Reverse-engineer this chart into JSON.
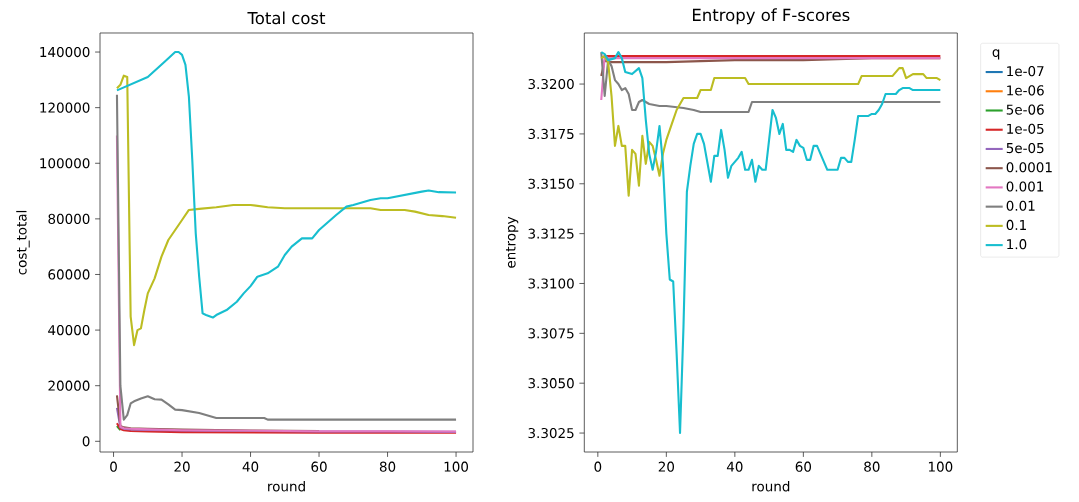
{
  "chart_data": [
    {
      "type": "line",
      "title": "Total cost",
      "xlabel": "round",
      "ylabel": "cost_total",
      "xlim": [
        -3.95,
        104.95
      ],
      "ylim": [
        -3850,
        146850
      ],
      "xticks": [
        0,
        20,
        40,
        60,
        80,
        100
      ],
      "yticks": [
        0,
        20000,
        40000,
        60000,
        80000,
        100000,
        120000,
        140000
      ],
      "series": [
        {
          "color": "#1f77b4"
        },
        {
          "color": "#ff7f0e"
        },
        {
          "color": "#2ca02c",
          "x": [
            1,
            2
          ],
          "values": [
            5500,
            4000
          ]
        },
        {
          "color": "#d62728",
          "x": [
            1,
            2,
            3,
            5,
            10,
            20,
            40,
            60,
            80,
            100
          ],
          "values": [
            6500,
            4400,
            4000,
            3700,
            3500,
            3300,
            3200,
            3100,
            3100,
            3100
          ]
        },
        {
          "color": "#9467bd",
          "x": [
            1,
            2,
            3,
            5,
            10,
            20,
            40,
            60,
            80,
            100
          ],
          "values": [
            12000,
            5000,
            4500,
            4300,
            4100,
            3900,
            3700,
            3500,
            3500,
            3400
          ]
        },
        {
          "color": "#8c564b",
          "x": [
            1,
            2,
            3,
            5,
            10,
            20,
            40,
            60
          ],
          "values": [
            16500,
            5500,
            5000,
            4700,
            4500,
            4200,
            3900,
            3700
          ]
        },
        {
          "color": "#e377c2",
          "x": [
            1,
            2,
            3,
            5,
            10,
            20,
            40,
            60,
            80,
            100
          ],
          "values": [
            110000,
            5200,
            4700,
            4500,
            4300,
            4000,
            3800,
            3600,
            3600,
            3500
          ]
        },
        {
          "color": "#7f7f7f",
          "x": [
            1,
            2,
            3,
            4,
            5,
            6,
            8,
            10,
            12,
            14,
            16,
            18,
            20,
            25,
            28,
            30,
            44,
            45,
            100
          ],
          "values": [
            124600,
            20000,
            7800,
            9400,
            13600,
            14400,
            15400,
            16200,
            15100,
            15000,
            13300,
            11400,
            11200,
            10200,
            9100,
            8400,
            8400,
            7800,
            7800
          ]
        },
        {
          "color": "#bcbd22",
          "x": [
            1,
            2,
            3,
            4,
            5,
            6,
            7,
            8,
            9,
            10,
            12,
            14,
            16,
            18,
            20,
            22,
            25,
            30,
            35,
            40,
            45,
            50,
            75,
            78,
            85,
            88,
            92,
            96,
            100
          ],
          "values": [
            127000,
            128200,
            131500,
            131000,
            44800,
            34600,
            40000,
            40600,
            47200,
            53200,
            58600,
            66400,
            72400,
            76000,
            79600,
            83200,
            83600,
            84200,
            85000,
            85000,
            84200,
            83800,
            83800,
            83200,
            83200,
            82600,
            81400,
            81000,
            80400
          ]
        },
        {
          "color": "#17becf",
          "x": [
            1,
            10,
            15,
            18,
            19,
            20,
            21,
            22,
            23,
            24,
            25,
            26,
            27,
            29,
            30,
            33,
            36,
            38,
            40,
            42,
            45,
            48,
            50,
            52,
            55,
            58,
            60,
            65,
            68,
            70,
            75,
            78,
            80,
            85,
            90,
            92,
            95,
            100
          ],
          "values": [
            126200,
            131000,
            136600,
            140000,
            140000,
            139000,
            135400,
            124000,
            101000,
            74800,
            59200,
            46000,
            45400,
            44500,
            45400,
            47200,
            50200,
            53200,
            55800,
            59200,
            60400,
            62800,
            67000,
            70000,
            73000,
            73000,
            76000,
            81400,
            84400,
            85000,
            86800,
            87400,
            87400,
            88600,
            89800,
            90200,
            89600,
            89500
          ]
        }
      ]
    },
    {
      "type": "line",
      "title": "Entropy of F-scores",
      "xlabel": "round",
      "ylabel": "entropy",
      "legend": "top right",
      "legend_title": "q",
      "xlim": [
        -3.95,
        104.95
      ],
      "ylim": [
        3.30155,
        3.32256
      ],
      "xticks": [
        0,
        20,
        40,
        60,
        80,
        100
      ],
      "yticks": [
        3.3025,
        {
          "value": 3.305,
          "label": "3.3050"
        },
        3.3075,
        {
          "value": 3.31,
          "label": "3.3100"
        },
        3.3125,
        {
          "value": 3.315,
          "label": "3.3150"
        },
        3.3175,
        {
          "value": 3.32,
          "label": "3.3200"
        }
      ],
      "series": [
        {
          "name": "1e-07",
          "color": "#1f77b4"
        },
        {
          "name": "1e-06",
          "color": "#ff7f0e"
        },
        {
          "name": "5e-06",
          "color": "#2ca02c"
        },
        {
          "name": "1e-05",
          "color": "#d62728",
          "x": [
            1,
            2,
            3,
            5,
            10,
            20,
            40,
            60,
            80,
            100
          ],
          "values": [
            3.3213,
            3.3214,
            3.3214,
            3.3214,
            3.3214,
            3.3214,
            3.3214,
            3.3214,
            3.3214,
            3.3214
          ]
        },
        {
          "name": "5e-05",
          "color": "#9467bd"
        },
        {
          "name": "0.0001",
          "color": "#8c564b",
          "x": [
            1,
            2,
            3,
            5,
            10,
            20,
            40,
            60,
            80,
            100
          ],
          "values": [
            3.3204,
            3.3212,
            3.3211,
            3.3211,
            3.3211,
            3.3211,
            3.3212,
            3.3212,
            3.3213,
            3.3213
          ]
        },
        {
          "name": "0.001",
          "color": "#e377c2",
          "x": [
            1,
            2,
            3,
            5,
            10,
            20,
            40,
            60,
            80,
            100
          ],
          "values": [
            3.3192,
            3.3214,
            3.3213,
            3.3213,
            3.3213,
            3.3213,
            3.3213,
            3.3213,
            3.3213,
            3.3213
          ]
        },
        {
          "name": "0.01",
          "color": "#7f7f7f",
          "x": [
            1,
            2,
            3,
            4,
            5,
            6,
            7,
            8,
            9,
            10,
            11,
            12,
            13,
            15,
            18,
            20,
            25,
            28,
            30,
            44,
            45,
            100
          ],
          "values": [
            3.3216,
            3.3194,
            3.3212,
            3.3209,
            3.3202,
            3.32,
            3.3197,
            3.3198,
            3.3195,
            3.3187,
            3.3187,
            3.3191,
            3.3192,
            3.319,
            3.3189,
            3.3189,
            3.3188,
            3.3187,
            3.3186,
            3.3186,
            3.3191,
            3.3191
          ]
        },
        {
          "name": "0.1",
          "color": "#bcbd22",
          "x": [
            1,
            2,
            3,
            4,
            5,
            6,
            7,
            8,
            9,
            10,
            11,
            12,
            13,
            14,
            15,
            16,
            17,
            18,
            19,
            20,
            22,
            23,
            25,
            29,
            30,
            33,
            34,
            43,
            44,
            76,
            77,
            86,
            88,
            89,
            90,
            92,
            95,
            96,
            99,
            100
          ],
          "values": [
            3.3213,
            3.3214,
            3.3211,
            3.3194,
            3.3169,
            3.3179,
            3.3169,
            3.3169,
            3.3144,
            3.3167,
            3.3165,
            3.3149,
            3.3174,
            3.316,
            3.3171,
            3.3169,
            3.3162,
            3.3154,
            3.3165,
            3.3172,
            3.3182,
            3.3187,
            3.3193,
            3.3193,
            3.3197,
            3.3197,
            3.3203,
            3.3203,
            3.32,
            3.32,
            3.3204,
            3.3204,
            3.3208,
            3.3208,
            3.3203,
            3.3205,
            3.3205,
            3.3203,
            3.3203,
            3.3202
          ]
        },
        {
          "name": "1.0",
          "color": "#17becf",
          "x": [
            1,
            2,
            3,
            5,
            6,
            7,
            8,
            10,
            12,
            13,
            14,
            15,
            16,
            17,
            18,
            19,
            20,
            21,
            22,
            23,
            24,
            25,
            26,
            27,
            28,
            29,
            30,
            31,
            33,
            34,
            35,
            36,
            37,
            38,
            39,
            41,
            42,
            43,
            44,
            45,
            46,
            47,
            48,
            49,
            50,
            51,
            52,
            53,
            54,
            55,
            56,
            57,
            58,
            59,
            60,
            61,
            62,
            63,
            64,
            65,
            67,
            70,
            71,
            72,
            73,
            74,
            75,
            76,
            79,
            80,
            81,
            82,
            83,
            84,
            87,
            88,
            89,
            91,
            92,
            100
          ],
          "values": [
            3.3216,
            3.3215,
            3.3212,
            3.3213,
            3.3216,
            3.3213,
            3.3206,
            3.3205,
            3.3208,
            3.3203,
            3.3182,
            3.3165,
            3.3157,
            3.3166,
            3.3179,
            3.316,
            3.3125,
            3.3102,
            3.3101,
            3.3065,
            3.3025,
            3.3078,
            3.3146,
            3.3159,
            3.317,
            3.3175,
            3.3175,
            3.317,
            3.3151,
            3.3164,
            3.3164,
            3.3177,
            3.3167,
            3.3153,
            3.3159,
            3.3163,
            3.3166,
            3.3157,
            3.3157,
            3.3162,
            3.3151,
            3.3159,
            3.3157,
            3.3157,
            3.3172,
            3.3187,
            3.3183,
            3.3175,
            3.318,
            3.3167,
            3.3167,
            3.3166,
            3.3172,
            3.3169,
            3.3168,
            3.3162,
            3.3162,
            3.3169,
            3.3169,
            3.3165,
            3.3157,
            3.3157,
            3.3163,
            3.3163,
            3.3161,
            3.3161,
            3.3172,
            3.3184,
            3.3184,
            3.3185,
            3.3185,
            3.3187,
            3.319,
            3.3195,
            3.3195,
            3.3197,
            3.3198,
            3.3198,
            3.3197,
            3.3197
          ]
        }
      ]
    }
  ]
}
